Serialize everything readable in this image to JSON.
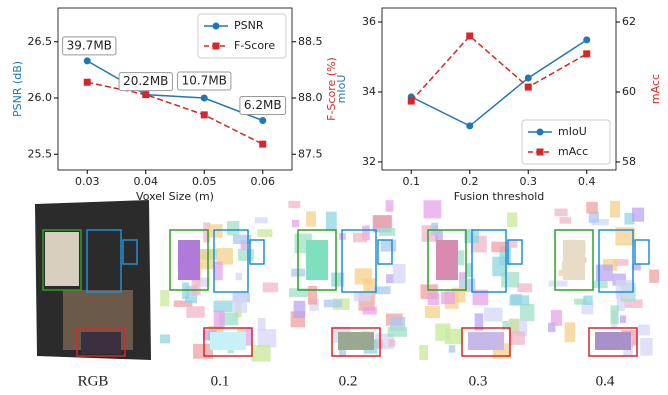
{
  "chart_data": [
    {
      "type": "line",
      "xlabel": "Voxel Size (m)",
      "ylabel": "PSNR (dB)",
      "y2label": "F-Score (%)",
      "x": [
        0.03,
        0.04,
        0.05,
        0.06
      ],
      "series": [
        {
          "name": "PSNR",
          "color": "#1f77b4",
          "marker": "o",
          "linestyle": "-",
          "values": [
            26.33,
            26.03,
            26.0,
            25.8
          ]
        },
        {
          "name": "F-Score",
          "color": "#d62728",
          "marker": "s",
          "linestyle": "--",
          "axis": "y2",
          "values": [
            88.14,
            88.03,
            87.85,
            87.59
          ]
        }
      ],
      "annotations": [
        "39.7MB",
        "20.2MB",
        "10.7MB",
        "6.2MB"
      ],
      "xlim": [
        0.025,
        0.065
      ],
      "xticks": [
        0.03,
        0.04,
        0.05,
        0.06
      ],
      "ylim": [
        25.36,
        26.8
      ],
      "yticks": [
        25.5,
        {
          "value": 26,
          "label": "26.0"
        },
        26.5
      ],
      "y2lim": [
        87.36,
        88.8
      ],
      "y2ticks": [
        87.5,
        {
          "value": 88,
          "label": "88.0"
        },
        88.5
      ],
      "legend": "upper right"
    },
    {
      "type": "line",
      "xlabel": "Fusion threshold",
      "ylabel": "mIoU",
      "y2label": "mAcc",
      "x": [
        0.1,
        0.2,
        0.3,
        0.4
      ],
      "series": [
        {
          "name": "mIoU",
          "color": "#1f77b4",
          "marker": "o",
          "linestyle": "-",
          "values": [
            33.86,
            33.03,
            34.4,
            35.49
          ]
        },
        {
          "name": "mAcc",
          "color": "#d62728",
          "marker": "s",
          "linestyle": "--",
          "axis": "y2",
          "values": [
            59.74,
            61.6,
            60.14,
            61.09
          ]
        }
      ],
      "xlim": [
        0.05,
        0.45
      ],
      "xticks": [
        0.1,
        0.2,
        0.3,
        0.4
      ],
      "ylim": [
        31.77,
        36.4
      ],
      "yticks": [
        32,
        34,
        36
      ],
      "y2lim": [
        57.77,
        62.4
      ],
      "y2ticks": [
        58,
        60,
        62
      ],
      "legend": "lower right"
    }
  ],
  "panels": [
    {
      "caption": "RGB"
    },
    {
      "caption": "0.1"
    },
    {
      "caption": "0.2"
    },
    {
      "caption": "0.3"
    },
    {
      "caption": "0.4"
    }
  ]
}
